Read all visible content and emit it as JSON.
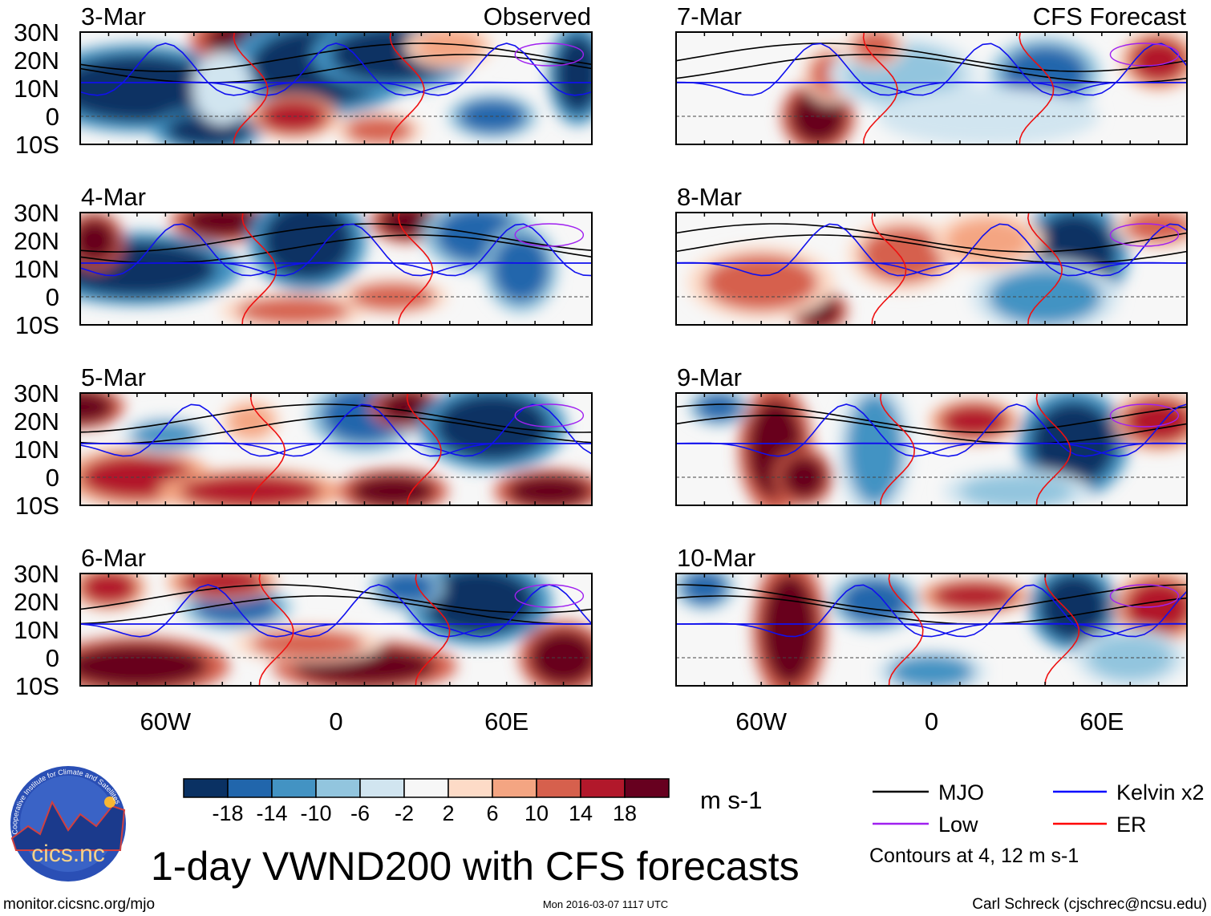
{
  "chart_data": {
    "type": "heatmap",
    "title": "1-day VWND200 with CFS forecasts",
    "units": "m s-1",
    "left_column_title": "Observed",
    "right_column_title": "CFS Forecast",
    "panels_left": [
      "3-Mar",
      "4-Mar",
      "5-Mar",
      "6-Mar"
    ],
    "panels_right": [
      "7-Mar",
      "8-Mar",
      "9-Mar",
      "10-Mar"
    ],
    "lat_ticks": [
      "30N",
      "20N",
      "10N",
      "0",
      "10S"
    ],
    "lat_values": [
      30,
      20,
      10,
      0,
      -10
    ],
    "lon_ticks": [
      "60W",
      "0",
      "60E"
    ],
    "lon_values": [
      -60,
      0,
      60
    ],
    "lon_range": [
      -90,
      90
    ],
    "lat_range": [
      -10,
      30
    ],
    "colorbar_levels": [
      "-18",
      "-14",
      "-10",
      "-6",
      "-2",
      "2",
      "6",
      "10",
      "14",
      "18"
    ],
    "colorbar_colors": [
      "#0a3163",
      "#2166ac",
      "#4393c3",
      "#92c5de",
      "#d1e5f0",
      "#f7f7f7",
      "#fddbc7",
      "#f4a582",
      "#d6604d",
      "#b2182b",
      "#67001f"
    ],
    "legend": [
      {
        "label": "MJO",
        "color": "#000000"
      },
      {
        "label": "Kelvin x2",
        "color": "#0000ff"
      },
      {
        "label": "Low",
        "color": "#a020f0"
      },
      {
        "label": "ER",
        "color": "#ff0000"
      }
    ],
    "contour_note": "Contours at 4, 12 m s-1"
  },
  "footer": {
    "url": "monitor.cicsnc.org/mjo",
    "timestamp": "Mon 2016-03-07 1117 UTC",
    "author": "Carl Schreck (cjschrec@ncsu.edu)",
    "logo_text": "cics.nc",
    "logo_ring": "Cooperative Institute for Climate and Satellites"
  }
}
